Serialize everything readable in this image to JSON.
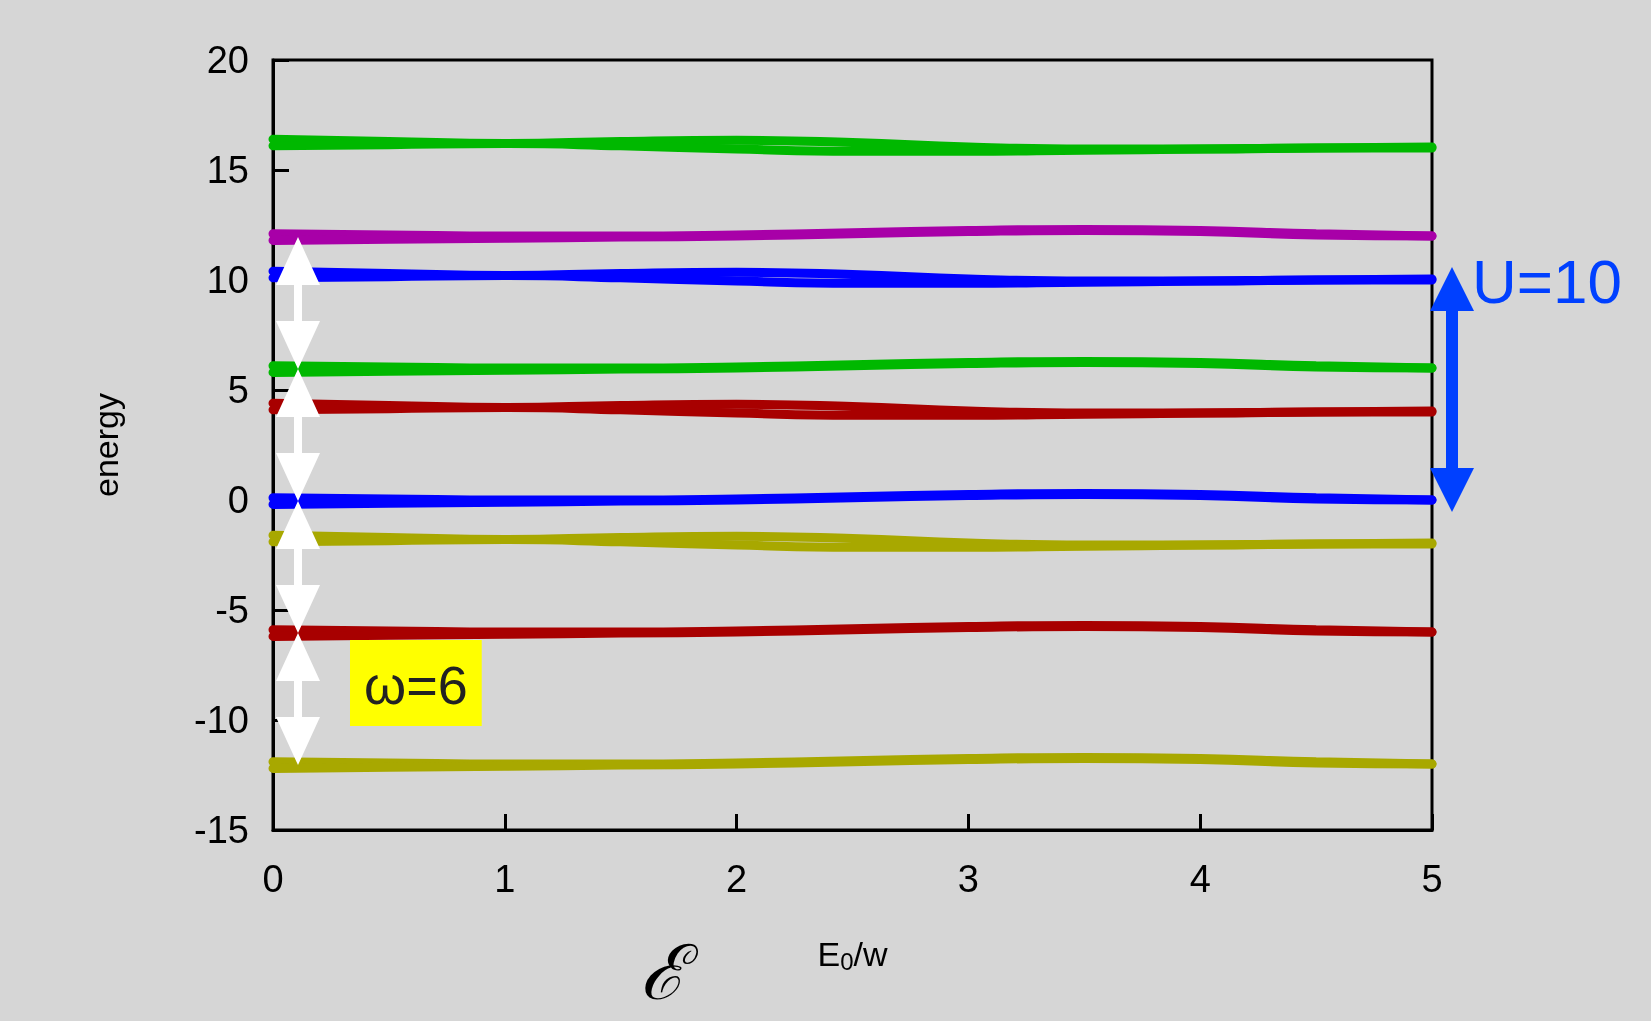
{
  "chart_data": {
    "type": "line",
    "xlabel": "E$_{0}$/w",
    "ylabel": "energy",
    "x": [
      0,
      0.5,
      1,
      1.5,
      2,
      2.5,
      3,
      3.5,
      4,
      4.5,
      5
    ],
    "xlim": [
      0,
      5
    ],
    "xticks": [
      0,
      1,
      2,
      3,
      4,
      5
    ],
    "ylim": [
      -15,
      20
    ],
    "yticks": [
      -15,
      -10,
      -5,
      0,
      5,
      10,
      15,
      20
    ],
    "annotations": [
      "ω=6",
      "U=10",
      "ℰ"
    ],
    "series": [
      {
        "color": "#00b800",
        "values": [
          16.4,
          16.3,
          16.2,
          16.3,
          16.35,
          16.25,
          16.05,
          15.95,
          15.95,
          16.0,
          16.05
        ]
      },
      {
        "color": "#00b800",
        "values": [
          16.1,
          16.15,
          16.2,
          16.1,
          15.95,
          15.85,
          15.85,
          15.9,
          15.95,
          16.0,
          16.0
        ]
      },
      {
        "color": "#a800a8",
        "values": [
          12.1,
          12.05,
          12.0,
          12.0,
          12.05,
          12.15,
          12.25,
          12.3,
          12.25,
          12.1,
          12.0
        ]
      },
      {
        "color": "#a800a8",
        "values": [
          11.8,
          11.85,
          11.9,
          11.95,
          12.0,
          12.1,
          12.2,
          12.25,
          12.2,
          12.05,
          12.0
        ]
      },
      {
        "color": "#0000ff",
        "values": [
          10.4,
          10.3,
          10.2,
          10.3,
          10.35,
          10.25,
          10.05,
          9.95,
          9.95,
          10.0,
          10.05
        ]
      },
      {
        "color": "#0000ff",
        "values": [
          10.1,
          10.15,
          10.2,
          10.1,
          9.95,
          9.85,
          9.85,
          9.9,
          9.95,
          10.0,
          10.0
        ]
      },
      {
        "color": "#00b800",
        "values": [
          6.1,
          6.05,
          6.0,
          6.0,
          6.05,
          6.15,
          6.25,
          6.3,
          6.25,
          6.1,
          6.0
        ]
      },
      {
        "color": "#00b800",
        "values": [
          5.8,
          5.85,
          5.9,
          5.95,
          6.0,
          6.1,
          6.2,
          6.25,
          6.2,
          6.05,
          6.0
        ]
      },
      {
        "color": "#a80000",
        "values": [
          4.4,
          4.3,
          4.2,
          4.3,
          4.35,
          4.25,
          4.05,
          3.95,
          3.95,
          4.0,
          4.05
        ]
      },
      {
        "color": "#a80000",
        "values": [
          4.1,
          4.15,
          4.2,
          4.1,
          3.95,
          3.85,
          3.85,
          3.9,
          3.95,
          4.0,
          4.0
        ]
      },
      {
        "color": "#0000ff",
        "values": [
          0.1,
          0.05,
          0.0,
          0.0,
          0.05,
          0.15,
          0.25,
          0.3,
          0.25,
          0.1,
          0.0
        ]
      },
      {
        "color": "#0000ff",
        "values": [
          -0.2,
          -0.15,
          -0.1,
          -0.05,
          0.0,
          0.1,
          0.2,
          0.25,
          0.2,
          0.05,
          0.0
        ]
      },
      {
        "color": "#a8a800",
        "values": [
          -1.6,
          -1.7,
          -1.8,
          -1.7,
          -1.65,
          -1.75,
          -1.95,
          -2.05,
          -2.05,
          -2.0,
          -1.95
        ]
      },
      {
        "color": "#a8a800",
        "values": [
          -1.9,
          -1.85,
          -1.8,
          -1.9,
          -2.05,
          -2.15,
          -2.15,
          -2.1,
          -2.05,
          -2.0,
          -2.0
        ]
      },
      {
        "color": "#a80000",
        "values": [
          -5.9,
          -5.95,
          -6.0,
          -6.0,
          -5.95,
          -5.85,
          -5.75,
          -5.7,
          -5.75,
          -5.9,
          -6.0
        ]
      },
      {
        "color": "#a80000",
        "values": [
          -6.2,
          -6.15,
          -6.1,
          -6.05,
          -6.0,
          -5.9,
          -5.8,
          -5.75,
          -5.8,
          -5.95,
          -6.0
        ]
      },
      {
        "color": "#a8a800",
        "values": [
          -11.9,
          -11.95,
          -12.0,
          -12.0,
          -11.95,
          -11.85,
          -11.75,
          -11.7,
          -11.75,
          -11.9,
          -12.0
        ]
      },
      {
        "color": "#a8a800",
        "values": [
          -12.2,
          -12.15,
          -12.1,
          -12.05,
          -12.0,
          -11.9,
          -11.8,
          -11.75,
          -11.8,
          -11.95,
          -12.0
        ]
      }
    ]
  }
}
